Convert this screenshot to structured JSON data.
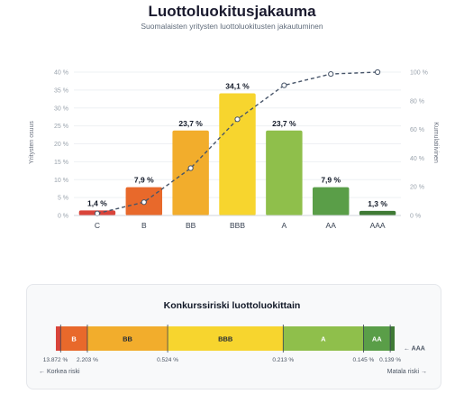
{
  "title": "Luottoluokitusjakauma",
  "subtitle": "Suomalaisten yritysten luottoluokitusten jakautuminen",
  "chart_data": [
    {
      "type": "bar",
      "categories": [
        "C",
        "B",
        "BB",
        "BBB",
        "A",
        "AA",
        "AAA"
      ],
      "series": [
        {
          "values": [
            1.4,
            7.9,
            23.7,
            34.1,
            23.7,
            7.9,
            1.3
          ]
        }
      ],
      "data_labels": [
        "1,4 %",
        "7,9 %",
        "23,7 %",
        "34,1 %",
        "23,7 %",
        "7,9 %",
        "1,3 %"
      ],
      "bar_colors": [
        "#d9443a",
        "#e8692b",
        "#f2ad2c",
        "#f7d52e",
        "#8fbf4b",
        "#5a9e48",
        "#3f7a35"
      ],
      "ylabel": "Yritysten osuus",
      "ylim": [
        0,
        40
      ],
      "yticks": [
        "0 %",
        "5 %",
        "10 %",
        "15 %",
        "20 %",
        "25 %",
        "30 %",
        "35 %",
        "40 %"
      ],
      "y2label": "Kumulatiivinen",
      "y2lim": [
        0,
        100
      ],
      "y2ticks": [
        "0 %",
        "20 %",
        "40 %",
        "60 %",
        "80 %",
        "100 %"
      ],
      "cumulative_line": [
        1.4,
        9.3,
        33.0,
        67.1,
        90.8,
        98.7,
        100.0
      ],
      "line_color": "#475569",
      "grid": true
    },
    {
      "type": "bar",
      "orientation": "horizontal-stacked",
      "title": "Konkurssiriski luottoluokittain",
      "segments": [
        {
          "label": "C",
          "share": 1.4,
          "color": "#d9443a"
        },
        {
          "label": "B",
          "share": 7.9,
          "color": "#e8692b"
        },
        {
          "label": "BB",
          "share": 23.7,
          "color": "#f2ad2c"
        },
        {
          "label": "BBB",
          "share": 34.1,
          "color": "#f7d52e"
        },
        {
          "label": "A",
          "share": 23.7,
          "color": "#8fbf4b"
        },
        {
          "label": "AA",
          "share": 7.9,
          "color": "#5a9e48"
        },
        {
          "label": "AAA",
          "share": 1.3,
          "color": "#3f7a35"
        }
      ],
      "risk_labels": [
        "13.872 %",
        "2.203 %",
        "0.524 %",
        "0.213 %",
        "0.145 %",
        "0.139 %"
      ],
      "left_note": "← Korkea riski",
      "right_note": "Matala riski →",
      "callout": "← AAA"
    }
  ]
}
